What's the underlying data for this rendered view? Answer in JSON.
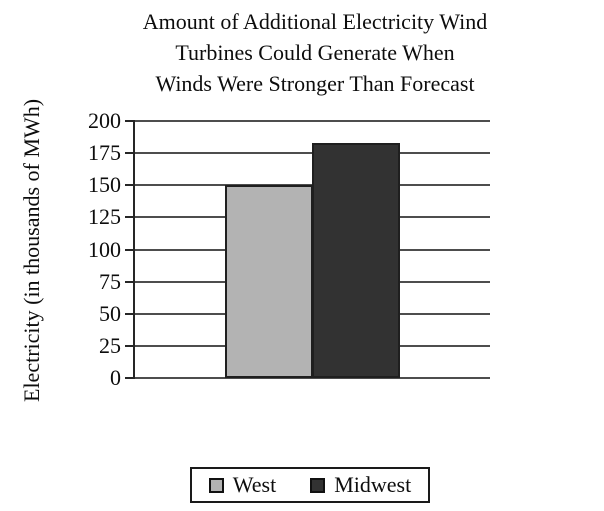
{
  "title": {
    "lines": [
      "Amount of Additional Electricity Wind",
      "Turbines Could Generate When",
      "Winds Were Stronger Than Forecast"
    ]
  },
  "chart_data": {
    "type": "bar",
    "title": "Amount of Additional Electricity Wind Turbines Could Generate When Winds Were Stronger Than Forecast",
    "categories": [
      "West",
      "Midwest"
    ],
    "values": [
      150,
      183
    ],
    "xlabel": "",
    "ylabel": "Electricity (in thousands of MWh)",
    "ylim": [
      0,
      200
    ],
    "yticks": [
      0,
      25,
      50,
      75,
      100,
      125,
      150,
      175,
      200
    ],
    "grid": true,
    "legend_position": "bottom-center",
    "bar_colors": [
      "#b3b3b3",
      "#323232"
    ]
  },
  "legend": {
    "items": [
      {
        "label": "West",
        "color": "#b3b3b3"
      },
      {
        "label": "Midwest",
        "color": "#323232"
      }
    ]
  },
  "colors": {
    "background": "#ffffff",
    "text": "#0d0d0d",
    "gridline": "#4d4d4d",
    "axis": "#262626",
    "bar_border": "#1f1f1f",
    "legend_border": "#1a1a1a"
  }
}
